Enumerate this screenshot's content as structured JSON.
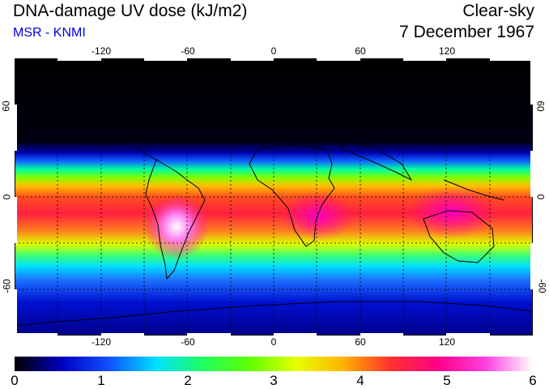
{
  "header": {
    "title": "DNA-damage UV dose (kJ/m2)",
    "credit": "MSR - KNMI",
    "sky_condition": "Clear-sky",
    "date": "7 December 1967"
  },
  "map": {
    "lon_ticks": [
      "-120",
      "-60",
      "0",
      "60",
      "120"
    ],
    "lat_ticks_left": [
      "60",
      "0",
      "-60"
    ],
    "lat_ticks_right": [
      "60",
      "0",
      "-60"
    ],
    "lon_range": [
      -180,
      180
    ],
    "lat_range": [
      -90,
      90
    ],
    "grid_lines": "dotted every 30°"
  },
  "colorbar": {
    "labels": [
      "0",
      "1",
      "2",
      "3",
      "4",
      "5",
      "6"
    ],
    "min": 0,
    "max": 6,
    "colors": [
      "#000000",
      "#0000c0",
      "#1050ff",
      "#00e0ff",
      "#20ff60",
      "#60ff00",
      "#e8ff00",
      "#ffb000",
      "#ff3030",
      "#ff0088",
      "#ff40e0",
      "#ffffff"
    ]
  }
}
